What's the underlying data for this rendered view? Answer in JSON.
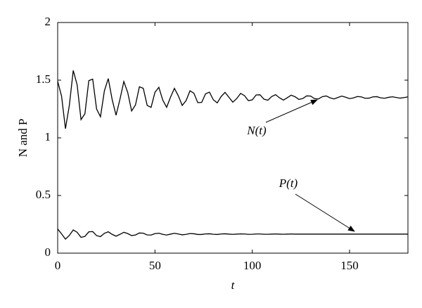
{
  "chart_data": {
    "type": "line",
    "xlabel": "t",
    "ylabel": "N and P",
    "xlim": [
      0,
      180
    ],
    "xticks": [
      0,
      50,
      100,
      150
    ],
    "ylim": [
      0,
      2
    ],
    "yticks": [
      0,
      0.5,
      1,
      1.5,
      2
    ],
    "grid": false,
    "x": [
      0,
      2,
      4,
      6,
      8,
      10,
      12,
      14,
      16,
      18,
      20,
      22,
      24,
      26,
      28,
      30,
      32,
      34,
      36,
      38,
      40,
      42,
      44,
      46,
      48,
      50,
      52,
      54,
      56,
      58,
      60,
      62,
      64,
      66,
      68,
      70,
      72,
      74,
      76,
      78,
      80,
      82,
      84,
      86,
      88,
      90,
      92,
      94,
      96,
      98,
      100,
      102,
      104,
      106,
      108,
      110,
      112,
      114,
      116,
      118,
      120,
      122,
      124,
      126,
      128,
      130,
      132,
      134,
      136,
      138,
      140,
      142,
      144,
      146,
      148,
      150,
      152,
      154,
      156,
      158,
      160,
      162,
      164,
      166,
      168,
      170,
      172,
      174,
      176,
      178,
      180
    ],
    "series": [
      {
        "color": "#000000",
        "values": [
          1.49,
          1.361,
          1.079,
          1.282,
          1.584,
          1.46,
          1.158,
          1.209,
          1.496,
          1.509,
          1.25,
          1.183,
          1.407,
          1.514,
          1.332,
          1.196,
          1.334,
          1.488,
          1.393,
          1.233,
          1.286,
          1.443,
          1.429,
          1.281,
          1.264,
          1.395,
          1.438,
          1.327,
          1.265,
          1.353,
          1.429,
          1.364,
          1.281,
          1.323,
          1.408,
          1.387,
          1.305,
          1.307,
          1.382,
          1.396,
          1.33,
          1.303,
          1.358,
          1.394,
          1.352,
          1.309,
          1.34,
          1.385,
          1.366,
          1.322,
          1.329,
          1.372,
          1.373,
          1.335,
          1.326,
          1.358,
          1.374,
          1.347,
          1.327,
          1.348,
          1.37,
          1.356,
          1.333,
          1.341,
          1.364,
          1.362,
          1.34,
          1.337,
          1.357,
          1.363,
          1.347,
          1.337,
          1.35,
          1.362,
          1.352,
          1.34,
          1.346,
          1.358,
          1.355,
          1.343,
          1.344,
          1.355,
          1.357,
          1.347,
          1.343,
          1.351,
          1.356,
          1.35,
          1.344,
          1.349,
          1.355
        ]
      },
      {
        "color": "#000000",
        "values": [
          0.21,
          0.167,
          0.122,
          0.154,
          0.201,
          0.181,
          0.137,
          0.145,
          0.185,
          0.187,
          0.152,
          0.143,
          0.172,
          0.185,
          0.163,
          0.147,
          0.163,
          0.181,
          0.17,
          0.152,
          0.158,
          0.175,
          0.173,
          0.158,
          0.157,
          0.169,
          0.173,
          0.163,
          0.157,
          0.165,
          0.172,
          0.166,
          0.159,
          0.163,
          0.17,
          0.168,
          0.162,
          0.162,
          0.167,
          0.168,
          0.164,
          0.162,
          0.166,
          0.168,
          0.165,
          0.163,
          0.165,
          0.167,
          0.166,
          0.163,
          0.164,
          0.166,
          0.166,
          0.164,
          0.164,
          0.165,
          0.166,
          0.165,
          0.164,
          0.165,
          0.166,
          0.165,
          0.165,
          0.165,
          0.165,
          0.165,
          0.165,
          0.165,
          0.165,
          0.165,
          0.165,
          0.165,
          0.165,
          0.165,
          0.165,
          0.165,
          0.165,
          0.165,
          0.165,
          0.165,
          0.165,
          0.165,
          0.165,
          0.165,
          0.165,
          0.165,
          0.165,
          0.165,
          0.165,
          0.165,
          0.165
        ]
      }
    ],
    "annotations": [
      "N(t)",
      "P(t)"
    ]
  }
}
